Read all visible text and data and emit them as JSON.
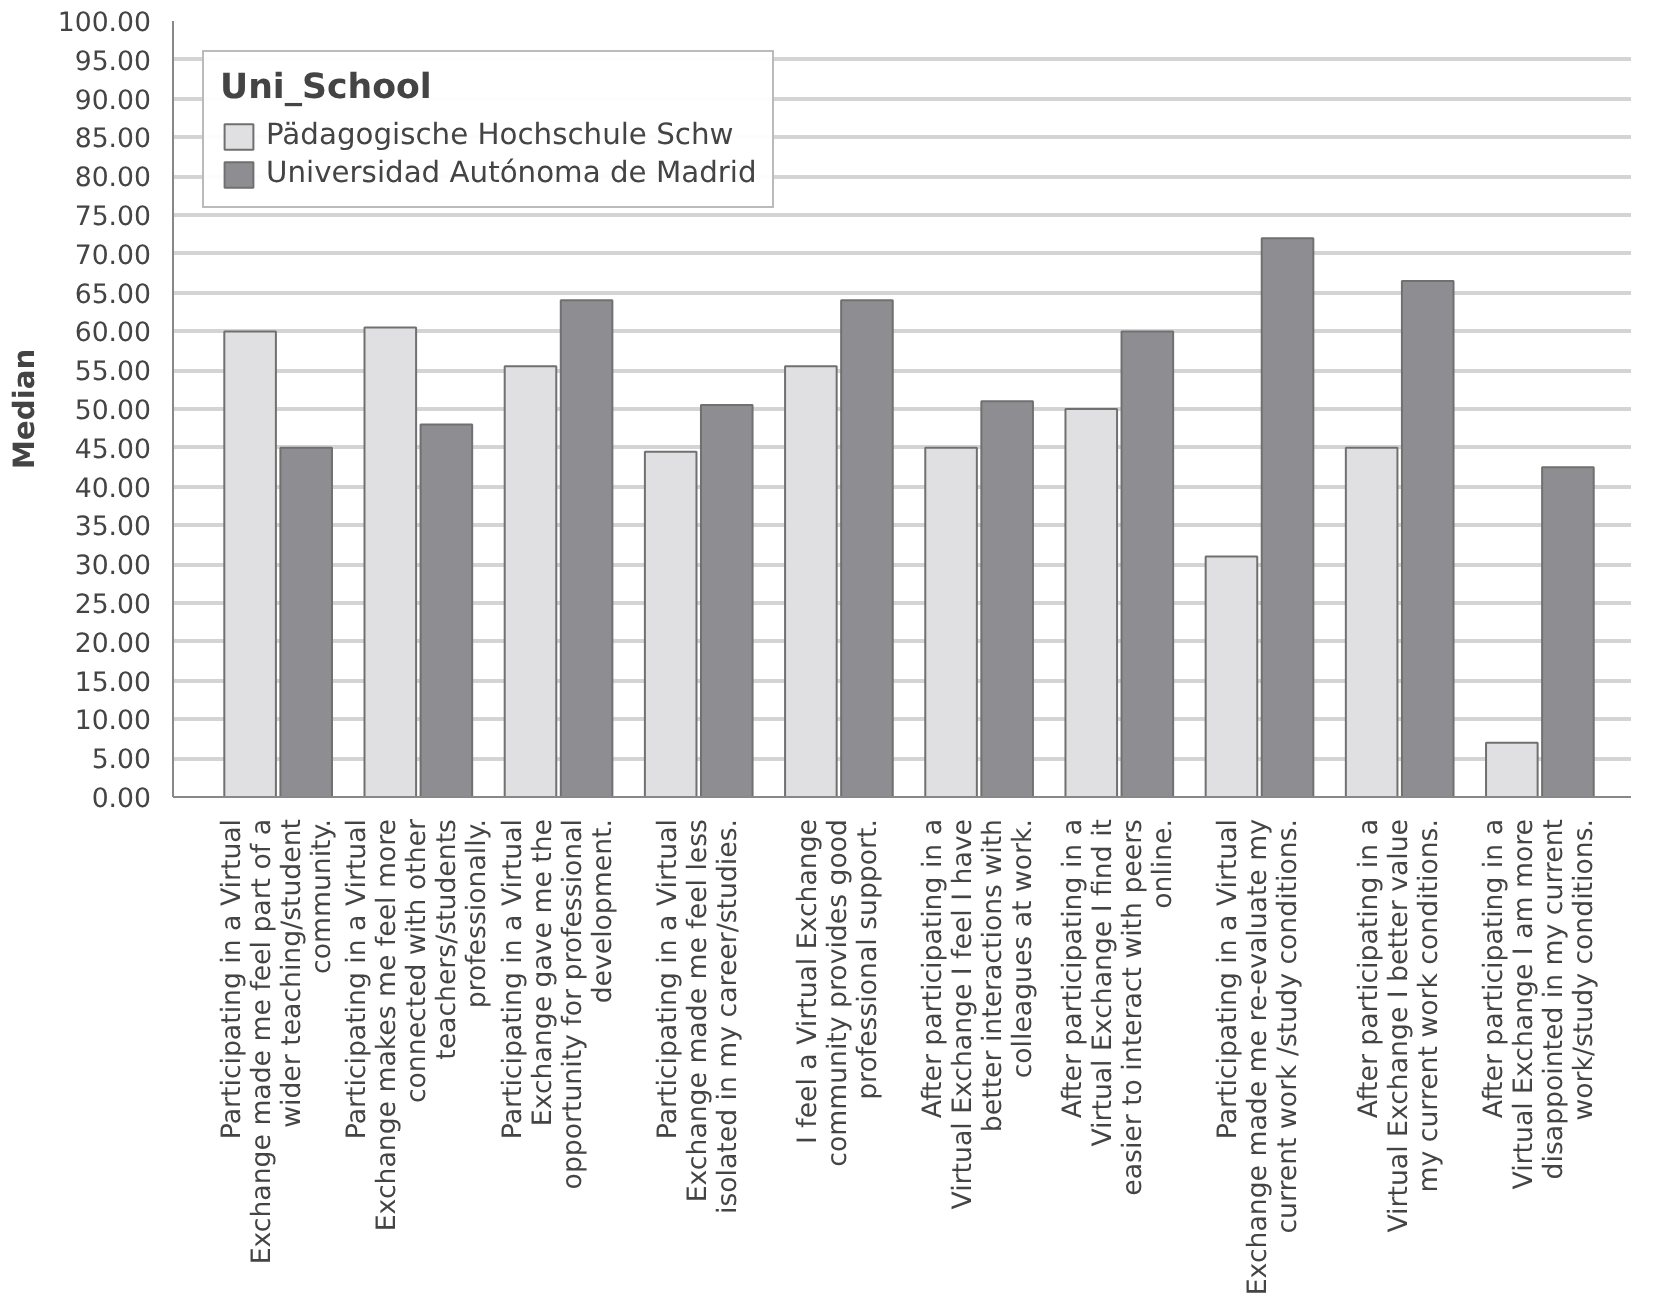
{
  "chart_data": {
    "type": "bar",
    "ylabel": "Median",
    "legend_title": "Uni_School",
    "categories": [
      "Participating in a Virtual Exchange made me feel part of a wider teaching/student community.",
      "Participating in a Virtual Exchange makes me feel more connected with other teachers/students professionally.",
      "Participating in a Virtual Exchange gave me the opportunity for professional development.",
      "Participating in a Virtual Exchange made me feel less isolated in my career/studies.",
      "I feel a Virtual Exchange community provides good professional support.",
      "After participating in a Virtual Exchange I feel I have better interactions with colleagues at work.",
      "After participating in a Virtual Exchange I find it easier to interact with peers online.",
      "Participating in a Virtual Exchange made me re-evaluate my current work /study conditions.",
      "After participating in a Virtual Exchange I better value my current work conditions.",
      "After participating in a Virtual Exchange I am more disappointed in my current work/study conditions."
    ],
    "series": [
      {
        "name": "Pädagogische Hochschule Schw",
        "color": "#e0e0e2",
        "values": [
          60,
          60.5,
          55.5,
          44.5,
          55.5,
          45,
          50,
          31,
          45,
          7
        ]
      },
      {
        "name": "Universidad Autónoma de Madrid",
        "color": "#8e8e92",
        "values": [
          45,
          48,
          64,
          50.5,
          64,
          51,
          60,
          72,
          66.5,
          42.5
        ]
      }
    ],
    "ylim": [
      0,
      100
    ],
    "yticks": [
      {
        "value": 0,
        "label": "0.00"
      },
      {
        "value": 5,
        "label": "5.00"
      },
      {
        "value": 10,
        "label": "10.00"
      },
      {
        "value": 15,
        "label": "15.00"
      },
      {
        "value": 20,
        "label": "20.00"
      },
      {
        "value": 25,
        "label": "25.00"
      },
      {
        "value": 30,
        "label": "30.00"
      },
      {
        "value": 35,
        "label": "35.00"
      },
      {
        "value": 40,
        "label": "40.00"
      },
      {
        "value": 45,
        "label": "45.00"
      },
      {
        "value": 50,
        "label": "50.00"
      },
      {
        "value": 55,
        "label": "55.00"
      },
      {
        "value": 60,
        "label": "60.00"
      },
      {
        "value": 65,
        "label": "65.00"
      },
      {
        "value": 70,
        "label": "70.00"
      },
      {
        "value": 75,
        "label": "75.00"
      },
      {
        "value": 80,
        "label": "80.00"
      },
      {
        "value": 85,
        "label": "85.00"
      },
      {
        "value": 90,
        "label": "90.00"
      },
      {
        "value": 95,
        "label": "95.00"
      },
      {
        "value": 100,
        "label": "100.00"
      }
    ],
    "grid": "y",
    "legend": "top left"
  }
}
